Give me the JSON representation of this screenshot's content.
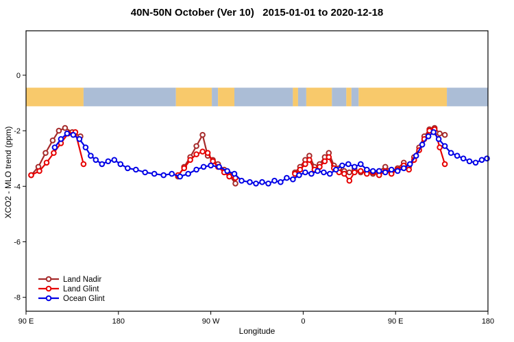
{
  "chart_data": {
    "type": "line",
    "title": "40N-50N October (Ver 10)   2015-01-01 to 2020-12-18",
    "xlabel": "Longitude",
    "ylabel": "XCO2 - MLO trend (ppm)",
    "axes": {
      "x": {
        "min": 90,
        "max": 540,
        "ticks": [
          {
            "value": 90,
            "label": "90 E"
          },
          {
            "value": 180,
            "label": "180"
          },
          {
            "value": 270,
            "label": "90 W"
          },
          {
            "value": 360,
            "label": "0"
          },
          {
            "value": 450,
            "label": "90 E"
          },
          {
            "value": 540,
            "label": "180"
          }
        ]
      },
      "y": {
        "min": -8.5,
        "max": 1.6,
        "ticks": [
          {
            "value": 0,
            "label": "0"
          },
          {
            "value": -2,
            "label": "-2"
          },
          {
            "value": -4,
            "label": "-4"
          },
          {
            "value": -6,
            "label": "-6"
          },
          {
            "value": -8,
            "label": "-8"
          }
        ]
      }
    },
    "map_band": {
      "top": -0.45,
      "bottom": -1.12,
      "land_color": "#F8C96B",
      "ocean_color": "#ABBDD6",
      "segments": [
        {
          "surface": "land",
          "from": 90,
          "to": 146
        },
        {
          "surface": "ocean",
          "from": 146,
          "to": 236
        },
        {
          "surface": "land",
          "from": 236,
          "to": 271
        },
        {
          "surface": "ocean",
          "from": 271,
          "to": 277
        },
        {
          "surface": "land",
          "from": 277,
          "to": 293
        },
        {
          "surface": "ocean",
          "from": 293,
          "to": 350
        },
        {
          "surface": "land",
          "from": 350,
          "to": 355
        },
        {
          "surface": "ocean",
          "from": 355,
          "to": 363
        },
        {
          "surface": "land",
          "from": 363,
          "to": 388
        },
        {
          "surface": "ocean",
          "from": 388,
          "to": 402
        },
        {
          "surface": "land",
          "from": 402,
          "to": 407
        },
        {
          "surface": "ocean",
          "from": 407,
          "to": 414
        },
        {
          "surface": "land",
          "from": 414,
          "to": 500
        },
        {
          "surface": "ocean",
          "from": 500,
          "to": 540
        }
      ]
    },
    "series": [
      {
        "id": "land-nadir",
        "name": "Land Nadir",
        "color": "#A52A2A",
        "marker": "open-circle",
        "segments": [
          [
            [
              95,
              -3.6
            ],
            [
              102,
              -3.3
            ],
            [
              109,
              -2.8
            ],
            [
              116,
              -2.35
            ],
            [
              122,
              -2.0
            ],
            [
              128,
              -1.9
            ],
            [
              135,
              -2.05
            ],
            [
              143,
              -2.2
            ]
          ],
          [
            [
              238,
              -3.65
            ],
            [
              244,
              -3.3
            ],
            [
              250,
              -2.95
            ],
            [
              256,
              -2.55
            ],
            [
              262,
              -2.15
            ],
            [
              267,
              -2.9
            ],
            [
              272,
              -3.05
            ],
            [
              277,
              -3.2
            ],
            [
              283,
              -3.4
            ],
            [
              288,
              -3.6
            ],
            [
              294,
              -3.9
            ]
          ],
          [
            [
              352,
              -3.5
            ],
            [
              357,
              -3.3
            ],
            [
              362,
              -3.05
            ],
            [
              366,
              -2.9
            ],
            [
              371,
              -3.3
            ],
            [
              376,
              -3.2
            ],
            [
              381,
              -2.95
            ],
            [
              385,
              -2.8
            ],
            [
              390,
              -3.25
            ],
            [
              395,
              -3.35
            ],
            [
              400,
              -3.45
            ],
            [
              405,
              -3.5
            ],
            [
              410,
              -3.4
            ],
            [
              416,
              -3.5
            ],
            [
              422,
              -3.45
            ],
            [
              428,
              -3.55
            ],
            [
              434,
              -3.45
            ],
            [
              440,
              -3.3
            ],
            [
              446,
              -3.45
            ],
            [
              452,
              -3.35
            ],
            [
              458,
              -3.15
            ],
            [
              463,
              -3.3
            ],
            [
              468,
              -2.95
            ],
            [
              473,
              -2.6
            ],
            [
              478,
              -2.2
            ],
            [
              483,
              -1.95
            ],
            [
              488,
              -1.9
            ],
            [
              493,
              -2.1
            ],
            [
              498,
              -2.15
            ]
          ]
        ]
      },
      {
        "id": "land-glint",
        "name": "Land Glint",
        "color": "#E60000",
        "marker": "open-circle",
        "segments": [
          [
            [
              95,
              -3.6
            ],
            [
              103,
              -3.45
            ],
            [
              110,
              -3.15
            ],
            [
              117,
              -2.8
            ],
            [
              124,
              -2.45
            ],
            [
              131,
              -2.1
            ],
            [
              138,
              -2.05
            ],
            [
              146,
              -3.2
            ]
          ],
          [
            [
              238,
              -3.6
            ],
            [
              244,
              -3.35
            ],
            [
              250,
              -3.05
            ],
            [
              256,
              -2.85
            ],
            [
              262,
              -2.75
            ],
            [
              267,
              -2.8
            ],
            [
              272,
              -3.1
            ],
            [
              277,
              -3.3
            ],
            [
              283,
              -3.5
            ],
            [
              288,
              -3.65
            ],
            [
              294,
              -3.7
            ]
          ],
          [
            [
              352,
              -3.55
            ],
            [
              357,
              -3.4
            ],
            [
              362,
              -3.2
            ],
            [
              366,
              -3.05
            ],
            [
              371,
              -3.4
            ],
            [
              376,
              -3.3
            ],
            [
              381,
              -3.1
            ],
            [
              385,
              -2.95
            ],
            [
              390,
              -3.35
            ],
            [
              395,
              -3.5
            ],
            [
              400,
              -3.55
            ],
            [
              405,
              -3.8
            ],
            [
              410,
              -3.5
            ],
            [
              416,
              -3.45
            ],
            [
              422,
              -3.55
            ],
            [
              428,
              -3.5
            ],
            [
              434,
              -3.6
            ],
            [
              440,
              -3.45
            ],
            [
              446,
              -3.55
            ],
            [
              452,
              -3.4
            ],
            [
              458,
              -3.25
            ],
            [
              463,
              -3.4
            ],
            [
              468,
              -3.05
            ],
            [
              473,
              -2.7
            ],
            [
              478,
              -2.3
            ],
            [
              483,
              -2.0
            ],
            [
              488,
              -1.95
            ],
            [
              493,
              -2.6
            ],
            [
              498,
              -3.2
            ]
          ]
        ]
      },
      {
        "id": "ocean-glint",
        "name": "Ocean Glint",
        "color": "#0000E6",
        "marker": "open-circle",
        "segments": [
          [
            [
              118,
              -2.6
            ],
            [
              124,
              -2.3
            ],
            [
              130,
              -2.1
            ],
            [
              136,
              -2.15
            ],
            [
              142,
              -2.3
            ],
            [
              148,
              -2.6
            ],
            [
              153,
              -2.9
            ],
            [
              158,
              -3.05
            ],
            [
              164,
              -3.2
            ],
            [
              170,
              -3.1
            ],
            [
              176,
              -3.05
            ],
            [
              182,
              -3.2
            ],
            [
              189,
              -3.35
            ],
            [
              197,
              -3.4
            ],
            [
              206,
              -3.5
            ],
            [
              215,
              -3.55
            ],
            [
              224,
              -3.6
            ],
            [
              232,
              -3.55
            ],
            [
              240,
              -3.65
            ],
            [
              248,
              -3.55
            ],
            [
              256,
              -3.4
            ],
            [
              263,
              -3.3
            ],
            [
              270,
              -3.25
            ],
            [
              278,
              -3.3
            ],
            [
              286,
              -3.45
            ],
            [
              293,
              -3.55
            ],
            [
              300,
              -3.8
            ],
            [
              308,
              -3.85
            ],
            [
              314,
              -3.9
            ],
            [
              320,
              -3.85
            ],
            [
              326,
              -3.9
            ],
            [
              332,
              -3.8
            ],
            [
              338,
              -3.85
            ],
            [
              344,
              -3.7
            ],
            [
              350,
              -3.75
            ],
            [
              356,
              -3.6
            ],
            [
              362,
              -3.5
            ],
            [
              368,
              -3.55
            ],
            [
              374,
              -3.45
            ],
            [
              380,
              -3.5
            ],
            [
              386,
              -3.55
            ],
            [
              392,
              -3.4
            ],
            [
              398,
              -3.25
            ],
            [
              404,
              -3.2
            ],
            [
              410,
              -3.3
            ],
            [
              416,
              -3.2
            ],
            [
              422,
              -3.4
            ],
            [
              428,
              -3.45
            ],
            [
              434,
              -3.45
            ],
            [
              440,
              -3.5
            ],
            [
              446,
              -3.4
            ],
            [
              452,
              -3.45
            ],
            [
              458,
              -3.35
            ],
            [
              464,
              -3.2
            ],
            [
              470,
              -2.9
            ],
            [
              476,
              -2.5
            ],
            [
              482,
              -2.2
            ],
            [
              487,
              -2.05
            ],
            [
              492,
              -2.3
            ],
            [
              498,
              -2.55
            ],
            [
              504,
              -2.8
            ],
            [
              510,
              -2.9
            ],
            [
              516,
              -3.0
            ],
            [
              522,
              -3.1
            ],
            [
              528,
              -3.15
            ],
            [
              534,
              -3.05
            ],
            [
              539,
              -3.0
            ]
          ]
        ]
      }
    ],
    "legend": {
      "position": "bottom-left",
      "items": [
        {
          "label": "Land Nadir"
        },
        {
          "label": "Land Glint"
        },
        {
          "label": "Ocean Glint"
        }
      ]
    }
  }
}
